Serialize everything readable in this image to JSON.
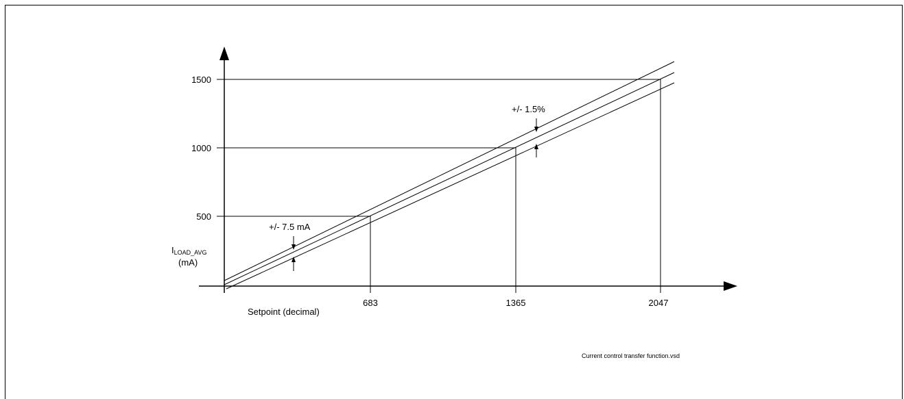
{
  "diagram": {
    "y_tick_labels": [
      "1500",
      "1000",
      "500"
    ],
    "x_tick_labels": [
      "683",
      "1365",
      "2047"
    ],
    "y_axis_label_main": "I",
    "y_axis_label_sub": "LOAD_AVG",
    "y_axis_unit": "(mA)",
    "x_axis_label": "Setpoint (decimal)",
    "tolerance_upper": "+/- 1.5%",
    "tolerance_lower": "+/- 7.5 mA",
    "file_caption": "Current control transfer function.vsd"
  },
  "colors": {
    "line": "#000000",
    "background": "#ffffff"
  }
}
